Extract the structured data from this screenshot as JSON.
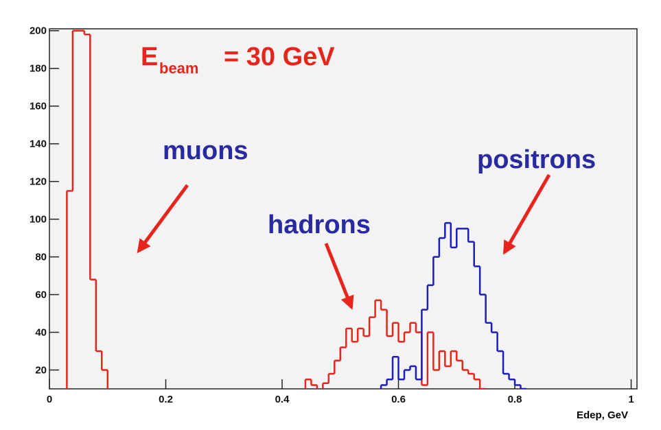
{
  "chart_data": {
    "type": "histogram",
    "bins": [
      0,
      0.01,
      0.02,
      0.03,
      0.04,
      0.05,
      0.06,
      0.07,
      0.08,
      0.09,
      0.1,
      0.11,
      0.12,
      0.13,
      0.14,
      0.15,
      0.16,
      0.17,
      0.18,
      0.19,
      0.2,
      0.21,
      0.22,
      0.23,
      0.24,
      0.25,
      0.26,
      0.27,
      0.28,
      0.29,
      0.3,
      0.31,
      0.32,
      0.33,
      0.34,
      0.35,
      0.36,
      0.37,
      0.38,
      0.39,
      0.4,
      0.41,
      0.42,
      0.43,
      0.44,
      0.45,
      0.46,
      0.47,
      0.48,
      0.49,
      0.5,
      0.51,
      0.52,
      0.53,
      0.54,
      0.55,
      0.56,
      0.57,
      0.58,
      0.59,
      0.6,
      0.61,
      0.62,
      0.63,
      0.64,
      0.65,
      0.66,
      0.67,
      0.68,
      0.69,
      0.7,
      0.71,
      0.72,
      0.73,
      0.74,
      0.75,
      0.76,
      0.77,
      0.78,
      0.79,
      0.8,
      0.81,
      0.82,
      0.83,
      0.84,
      0.85,
      0.86,
      0.87,
      0.88,
      0.89,
      0.9,
      0.91,
      0.92,
      0.93,
      0.94,
      0.95,
      0.96,
      0.97,
      0.98,
      0.99,
      1
    ],
    "series": [
      {
        "color": "#e8251c",
        "values": [
          0,
          0,
          0,
          115,
          200,
          200,
          198,
          68,
          30,
          20,
          0,
          0,
          0,
          0,
          0,
          0,
          0,
          0,
          0,
          0,
          0,
          0,
          0,
          0,
          0,
          0,
          0,
          0,
          0,
          0,
          0,
          0,
          0,
          0,
          0,
          0,
          0,
          0,
          0,
          0,
          0,
          0,
          0,
          0,
          15,
          12,
          8,
          13,
          18,
          25,
          32,
          42,
          35,
          42,
          38,
          48,
          57,
          52,
          38,
          45,
          35,
          40,
          45,
          40,
          12,
          40,
          20,
          30,
          22,
          30,
          25,
          20,
          18,
          15,
          10,
          0,
          0,
          0,
          0,
          0,
          0,
          0,
          0,
          0,
          0,
          0,
          0,
          0,
          0,
          0,
          0,
          0,
          0,
          0,
          0,
          0,
          0,
          0,
          0,
          0
        ]
      },
      {
        "color": "#1c1cb8",
        "values": [
          0,
          0,
          0,
          0,
          0,
          0,
          0,
          0,
          0,
          0,
          0,
          0,
          0,
          0,
          0,
          0,
          0,
          0,
          0,
          0,
          0,
          0,
          0,
          0,
          0,
          0,
          0,
          0,
          0,
          0,
          0,
          0,
          0,
          0,
          0,
          0,
          0,
          0,
          0,
          0,
          0,
          0,
          0,
          0,
          0,
          0,
          0,
          0,
          0,
          0,
          0,
          0,
          0,
          0,
          0,
          0,
          0,
          12,
          15,
          27,
          15,
          20,
          22,
          15,
          52,
          65,
          80,
          90,
          98,
          85,
          95,
          95,
          88,
          75,
          60,
          45,
          40,
          30,
          18,
          15,
          12,
          10,
          0,
          0,
          0,
          0,
          0,
          0,
          0,
          0,
          0,
          0,
          0,
          0,
          0,
          0,
          0,
          0,
          0,
          0,
          0,
          0
        ]
      }
    ],
    "xlim": [
      0,
      1.01
    ],
    "ylim": [
      10,
      201
    ],
    "xticks": [
      0,
      0.2,
      0.4,
      0.6,
      0.8,
      1
    ],
    "yticks": [
      20,
      40,
      60,
      80,
      100,
      120,
      140,
      160,
      180,
      200
    ],
    "x_label": "Edep, GeV",
    "annotations": {
      "energy_symbol": "E",
      "energy_subscript": "beam",
      "energy_value": "= 30 GeV",
      "muons": "muons",
      "hadrons": "hadrons",
      "positrons": "positrons"
    }
  }
}
